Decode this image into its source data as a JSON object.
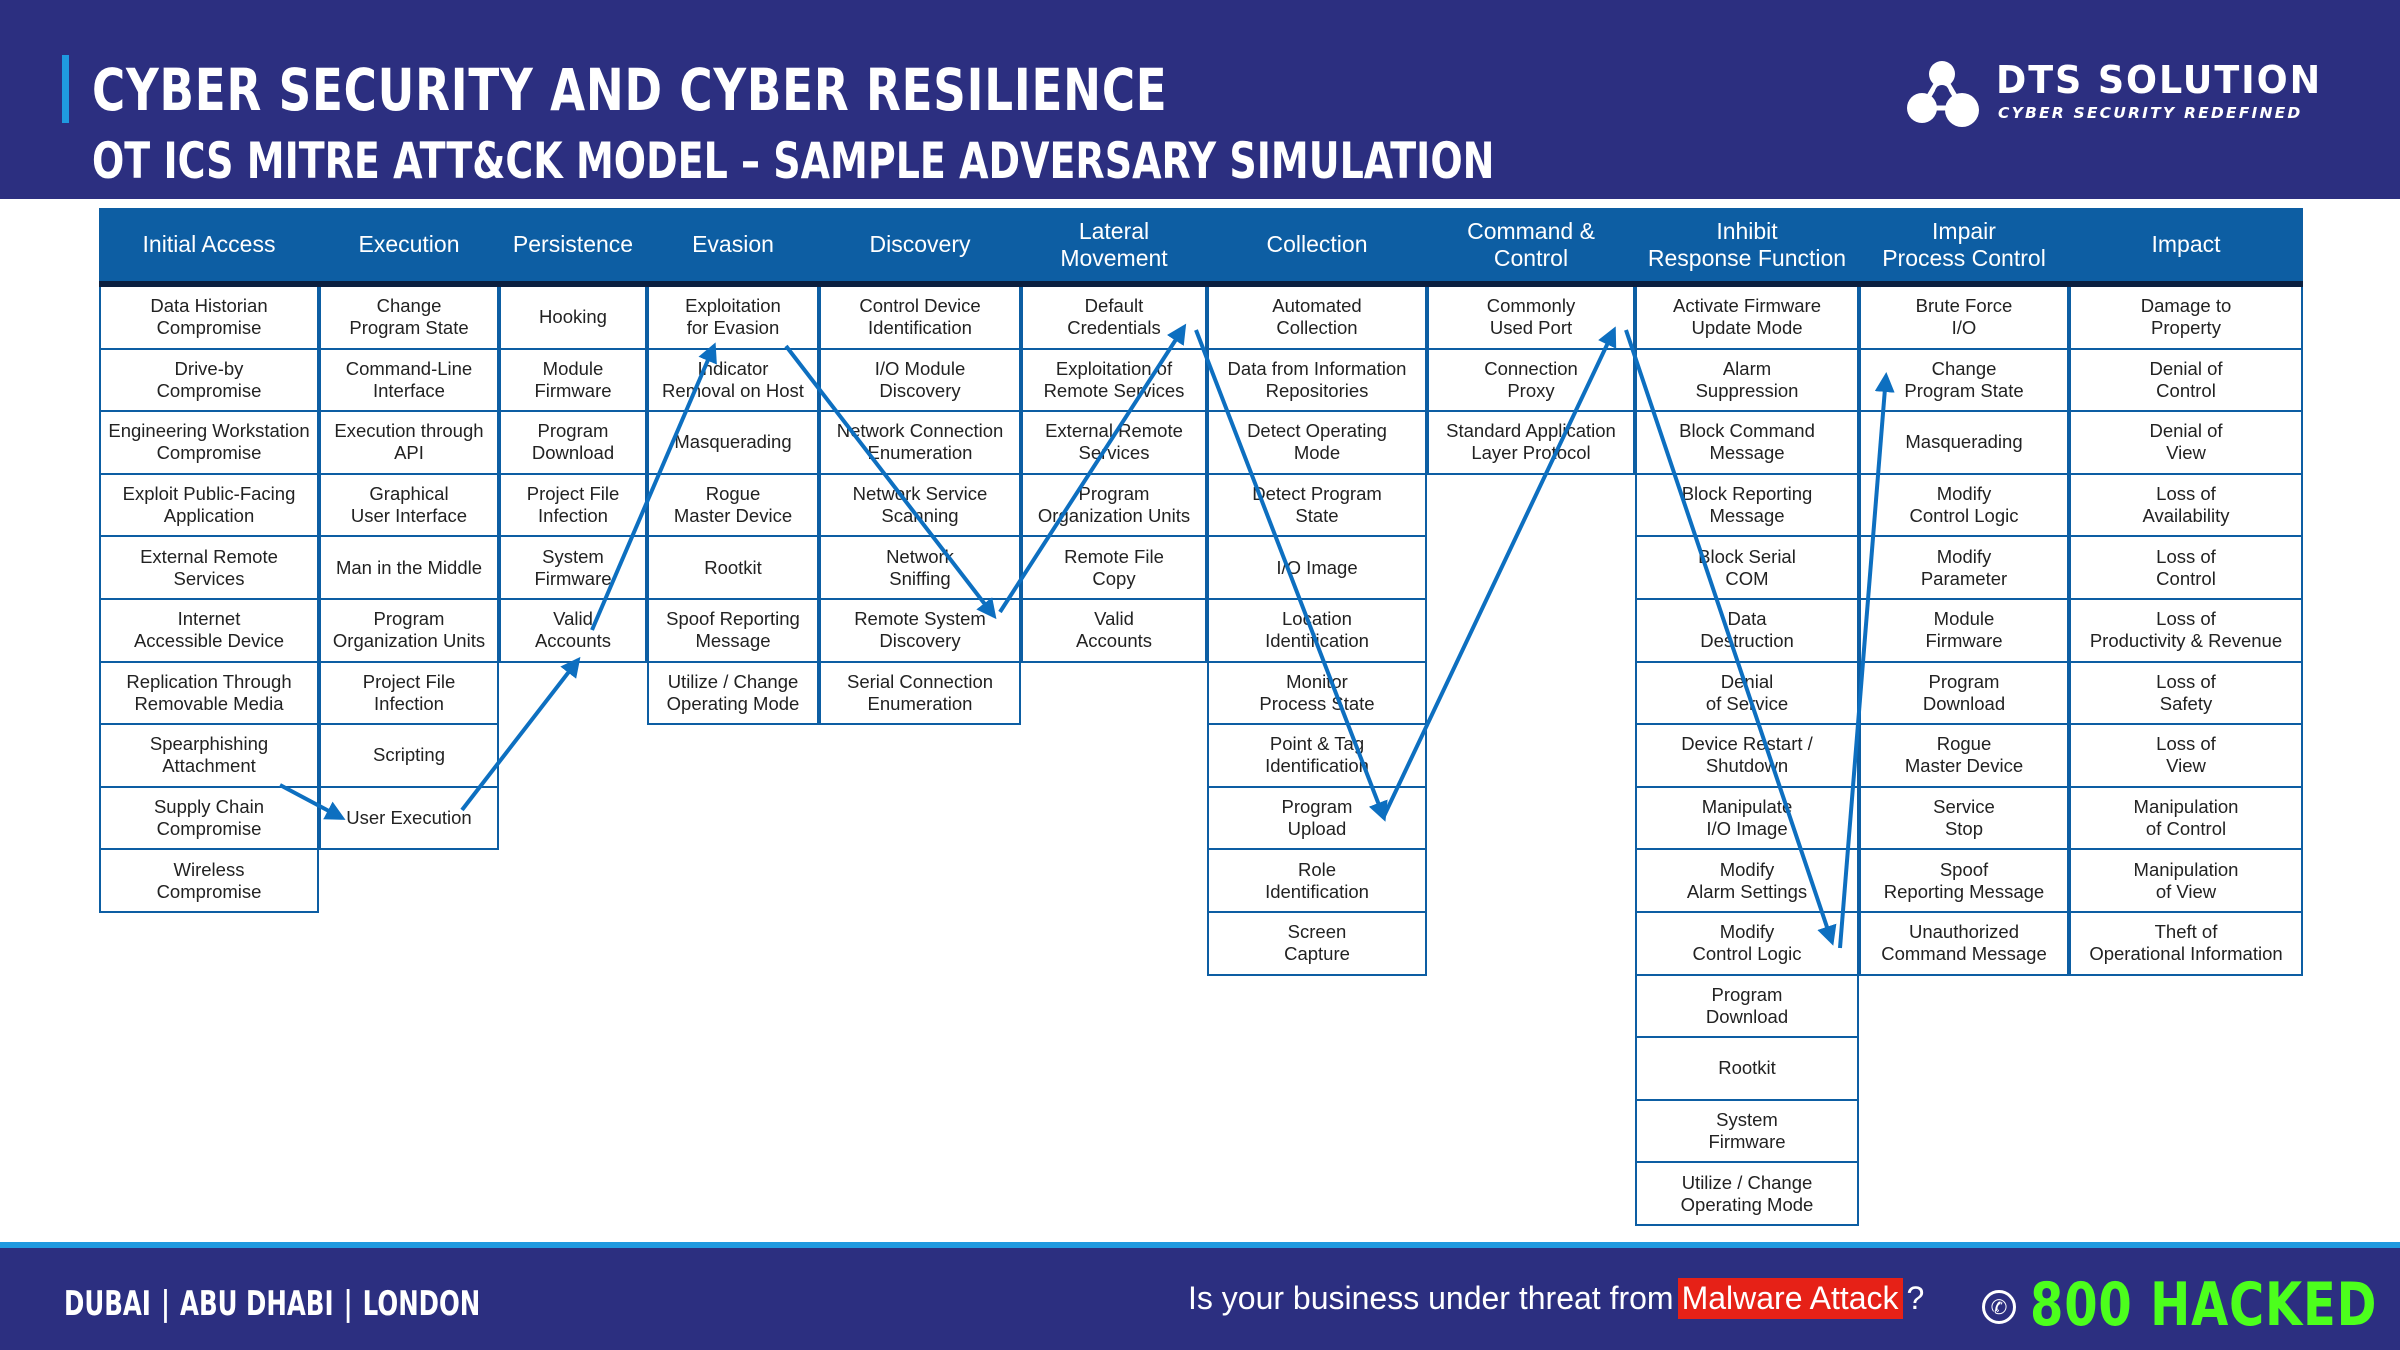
{
  "header": {
    "title": "CYBER SECURITY AND CYBER RESILIENCE",
    "subtitle": "OT ICS MITRE ATT&CK MODEL – SAMPLE ADVERSARY SIMULATION",
    "logo_name": "DTS SOLUTION",
    "logo_tagline": "CYBER SECURITY REDEFINED"
  },
  "tactics": [
    {
      "name": "Initial Access",
      "techniques": [
        "Data Historian\nCompromise",
        "Drive-by\nCompromise",
        "Engineering Workstation\nCompromise",
        "Exploit Public-Facing\nApplication",
        "External Remote\nServices",
        "Internet\nAccessible Device",
        "Replication Through\nRemovable Media",
        "Spearphishing\nAttachment",
        "Supply Chain\nCompromise",
        "Wireless\nCompromise"
      ]
    },
    {
      "name": "Execution",
      "techniques": [
        "Change\nProgram State",
        "Command-Line\nInterface",
        "Execution through\nAPI",
        "Graphical\nUser Interface",
        "Man in the Middle",
        "Program\nOrganization Units",
        "Project File\nInfection",
        "Scripting",
        "User Execution"
      ]
    },
    {
      "name": "Persistence",
      "techniques": [
        "Hooking",
        "Module\nFirmware",
        "Program\nDownload",
        "Project File\nInfection",
        "System\nFirmware",
        "Valid\nAccounts"
      ]
    },
    {
      "name": "Evasion",
      "techniques": [
        "Exploitation\nfor Evasion",
        "Indicator\nRemoval on Host",
        "Masquerading",
        "Rogue\nMaster Device",
        "Rootkit",
        "Spoof Reporting\nMessage",
        "Utilize / Change\nOperating Mode"
      ]
    },
    {
      "name": "Discovery",
      "techniques": [
        "Control Device\nIdentification",
        "I/O Module\nDiscovery",
        "Network Connection\nEnumeration",
        "Network Service\nScanning",
        "Network\nSniffing",
        "Remote System\nDiscovery",
        "Serial Connection\nEnumeration"
      ]
    },
    {
      "name": "Lateral\nMovement",
      "techniques": [
        "Default\nCredentials",
        "Exploitation of\nRemote Services",
        "External Remote\nServices",
        "Program\nOrganization Units",
        "Remote File\nCopy",
        "Valid\nAccounts"
      ]
    },
    {
      "name": "Collection",
      "techniques": [
        "Automated\nCollection",
        "Data from Information\nRepositories",
        "Detect Operating\nMode",
        "Detect Program\nState",
        "I/O Image",
        "Location\nIdentification",
        "Monitor\nProcess State",
        "Point & Tag\nIdentification",
        "Program\nUpload",
        "Role\nIdentification",
        "Screen\nCapture"
      ]
    },
    {
      "name": "Command &\nControl",
      "techniques": [
        "Commonly\nUsed Port",
        "Connection\nProxy",
        "Standard Application\nLayer Protocol"
      ]
    },
    {
      "name": "Inhibit\nResponse Function",
      "techniques": [
        "Activate Firmware\nUpdate Mode",
        "Alarm\nSuppression",
        "Block Command\nMessage",
        "Block Reporting\nMessage",
        "Block Serial\nCOM",
        "Data\nDestruction",
        "Denial\nof Service",
        "Device Restart /\nShutdown",
        "Manipulate\nI/O Image",
        "Modify\nAlarm Settings",
        "Modify\nControl Logic",
        "Program\nDownload",
        "Rootkit",
        "System\nFirmware",
        "Utilize / Change\nOperating Mode"
      ]
    },
    {
      "name": "Impair\nProcess Control",
      "techniques": [
        "Brute Force\nI/O",
        "Change\nProgram State",
        "Masquerading",
        "Modify\nControl Logic",
        "Modify\nParameter",
        "Module\nFirmware",
        "Program\nDownload",
        "Rogue\nMaster Device",
        "Service\nStop",
        "Spoof\nReporting Message",
        "Unauthorized\nCommand Message"
      ]
    },
    {
      "name": "Impact",
      "techniques": [
        "Damage to\nProperty",
        "Denial of\nControl",
        "Denial of\nView",
        "Loss of\nAvailability",
        "Loss of\nControl",
        "Loss of\nProductivity & Revenue",
        "Loss of\nSafety",
        "Loss of\nView",
        "Manipulation\nof Control",
        "Manipulation\nof View",
        "Theft of\nOperational Information"
      ]
    }
  ],
  "attack_path": [
    {
      "tactic": "Initial Access",
      "technique": "Spearphishing Attachment"
    },
    {
      "tactic": "Execution",
      "technique": "User Execution"
    },
    {
      "tactic": "Persistence",
      "technique": "Valid Accounts"
    },
    {
      "tactic": "Evasion",
      "technique": "Exploitation for Evasion"
    },
    {
      "tactic": "Discovery",
      "technique": "Remote System Discovery"
    },
    {
      "tactic": "Lateral Movement",
      "technique": "Default Credentials"
    },
    {
      "tactic": "Collection",
      "technique": "Program Upload"
    },
    {
      "tactic": "Command & Control",
      "technique": "Commonly Used Port"
    },
    {
      "tactic": "Inhibit Response Function",
      "technique": "Modify Control Logic"
    },
    {
      "tactic": "Impair Process Control",
      "technique": "Change Program State"
    }
  ],
  "colors": {
    "header_bg": "#2c2f80",
    "accent": "#1f9ae0",
    "table_blue": "#0d5ea3",
    "arrow": "#0d6fc0",
    "malware_red": "#e62117",
    "hotline_green": "#4cff1c"
  },
  "footer": {
    "cities": [
      "DUBAI",
      "ABU DHABI",
      "LONDON"
    ],
    "question_pre": "Is your business under threat from",
    "question_highlight": "Malware Attack",
    "question_post": "?",
    "phone_icon": "phone-icon",
    "hotline": "800 HACKED"
  }
}
